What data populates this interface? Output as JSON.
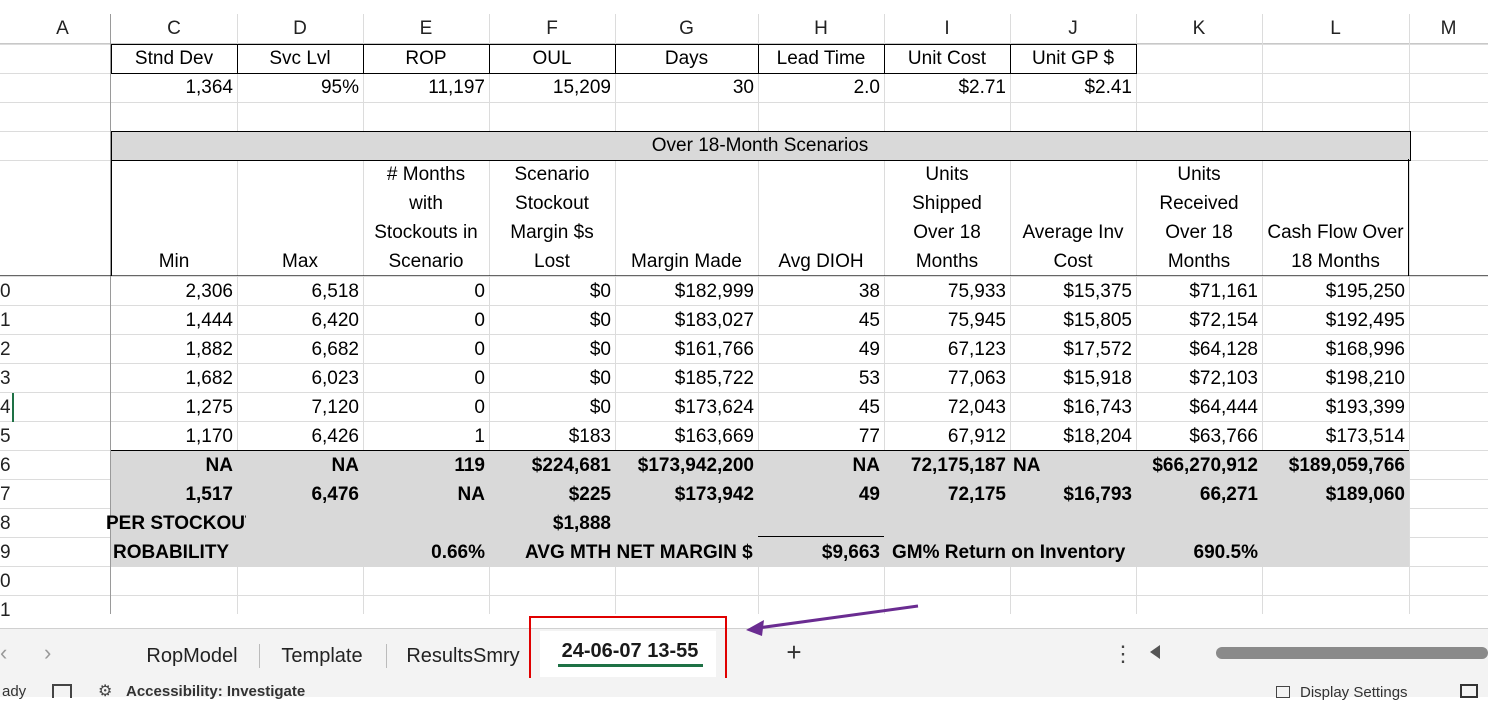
{
  "columns": [
    "A",
    "C",
    "D",
    "E",
    "F",
    "G",
    "H",
    "I",
    "J",
    "K",
    "L",
    "M"
  ],
  "params": {
    "headers": [
      "Stnd Dev",
      "Svc Lvl",
      "ROP",
      "OUL",
      "Days",
      "Lead Time",
      "Unit Cost",
      "Unit GP $"
    ],
    "values": [
      "1,364",
      "95%",
      "11,197",
      "15,209",
      "30",
      "2.0",
      "$2.71",
      "$2.41"
    ]
  },
  "scenario_title": "Over 18-Month Scenarios",
  "table_headers": [
    [
      "Min"
    ],
    [
      "Max"
    ],
    [
      "# Months",
      "with",
      "Stockouts in",
      "Scenario"
    ],
    [
      "Scenario",
      "Stockout",
      "Margin $s",
      "Lost"
    ],
    [
      "Margin Made"
    ],
    [
      "Avg DIOH"
    ],
    [
      "Units",
      "Shipped",
      "Over 18",
      "Months"
    ],
    [
      "Average Inv",
      "Cost"
    ],
    [
      "Units",
      "Received",
      "Over 18",
      "Months"
    ],
    [
      "Cash Flow Over",
      "18 Months"
    ]
  ],
  "row_numbers": [
    "0",
    "1",
    "2",
    "3",
    "4",
    "5",
    "6",
    "7",
    "8",
    "9",
    "0",
    "1"
  ],
  "rows": [
    [
      "2,306",
      "6,518",
      "0",
      "$0",
      "$182,999",
      "38",
      "75,933",
      "$15,375",
      "$71,161",
      "$195,250"
    ],
    [
      "1,444",
      "6,420",
      "0",
      "$0",
      "$183,027",
      "45",
      "75,945",
      "$15,805",
      "$72,154",
      "$192,495"
    ],
    [
      "1,882",
      "6,682",
      "0",
      "$0",
      "$161,766",
      "49",
      "67,123",
      "$17,572",
      "$64,128",
      "$168,996"
    ],
    [
      "1,682",
      "6,023",
      "0",
      "$0",
      "$185,722",
      "53",
      "77,063",
      "$15,918",
      "$72,103",
      "$198,210"
    ],
    [
      "1,275",
      "7,120",
      "0",
      "$0",
      "$173,624",
      "45",
      "72,043",
      "$16,743",
      "$64,444",
      "$193,399"
    ],
    [
      "1,170",
      "6,426",
      "1",
      "$183",
      "$163,669",
      "77",
      "67,912",
      "$18,204",
      "$63,766",
      "$173,514"
    ]
  ],
  "totals": [
    "NA",
    "NA",
    "119",
    "$224,681",
    "$173,942,200",
    "NA",
    "72,175,187",
    "NA",
    "$66,270,912",
    "$189,059,766"
  ],
  "averages": [
    "1,517",
    "6,476",
    "NA",
    "$225",
    "$173,942",
    "49",
    "72,175",
    "$16,793",
    "66,271",
    "$189,060"
  ],
  "summary": {
    "per_stockout_label": "PER STOCKOUT",
    "per_stockout_value": "$1,888",
    "probability_label": "ROBABILITY",
    "probability_value": "0.66%",
    "avg_mth_label": "AVG MTH NET MARGIN $",
    "avg_mth_value": "$9,663",
    "gm_label": "GM% Return on Inventory",
    "gm_value": "690.5%"
  },
  "sheet_tabs": [
    "RopModel",
    "Template",
    "ResultsSmry",
    "24-06-07 13-55"
  ],
  "active_tab": "24-06-07 13-55",
  "add_tab_label": "+",
  "status_bar": {
    "ready": "ady",
    "accessibility": "Accessibility: Investigate",
    "display_settings": "Display Settings"
  },
  "colors": {
    "highlight_box": "#e00000",
    "arrow": "#6a2c91",
    "active_tab_underline": "#1e7145",
    "gray_fill": "#d9d9d9"
  }
}
